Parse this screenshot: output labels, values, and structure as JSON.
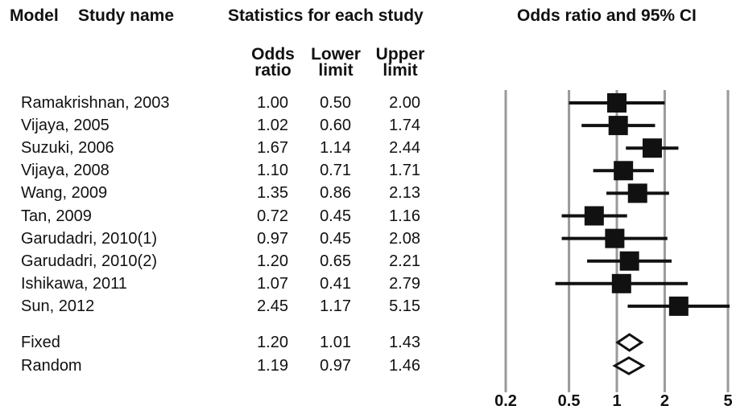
{
  "headers": {
    "model": "Model",
    "study_name": "Study name",
    "stats": "Statistics for each study",
    "ci": "Odds ratio and 95% CI",
    "col_or_1": "Odds",
    "col_or_2": "ratio",
    "col_lo_1": "Lower",
    "col_lo_2": "limit",
    "col_hi_1": "Upper",
    "col_hi_2": "limit"
  },
  "chart_data": {
    "type": "forest",
    "x_scale": "log",
    "xlim": [
      0.2,
      5
    ],
    "x_ticks": [
      0.2,
      0.5,
      1,
      2,
      5
    ],
    "x_tick_labels": [
      "0.2",
      "0.5",
      "1",
      "2",
      "5"
    ],
    "grid": true,
    "studies": [
      {
        "name": "Ramakrishnan, 2003",
        "or": "1.00",
        "lower": "0.50",
        "upper": "2.00"
      },
      {
        "name": "Vijaya, 2005",
        "or": "1.02",
        "lower": "0.60",
        "upper": "1.74"
      },
      {
        "name": "Suzuki, 2006",
        "or": "1.67",
        "lower": "1.14",
        "upper": "2.44"
      },
      {
        "name": "Vijaya, 2008",
        "or": "1.10",
        "lower": "0.71",
        "upper": "1.71"
      },
      {
        "name": "Wang, 2009",
        "or": "1.35",
        "lower": "0.86",
        "upper": "2.13"
      },
      {
        "name": "Tan, 2009",
        "or": "0.72",
        "lower": "0.45",
        "upper": "1.16"
      },
      {
        "name": "Garudadri, 2010(1)",
        "or": "0.97",
        "lower": "0.45",
        "upper": "2.08"
      },
      {
        "name": "Garudadri, 2010(2)",
        "or": "1.20",
        "lower": "0.65",
        "upper": "2.21"
      },
      {
        "name": "Ishikawa, 2011",
        "or": "1.07",
        "lower": "0.41",
        "upper": "2.79"
      },
      {
        "name": "Sun, 2012",
        "or": "2.45",
        "lower": "1.17",
        "upper": "5.15"
      }
    ],
    "summary": [
      {
        "name": "Fixed",
        "or": "1.20",
        "lower": "1.01",
        "upper": "1.43"
      },
      {
        "name": "Random",
        "or": "1.19",
        "lower": "0.97",
        "upper": "1.46"
      }
    ]
  }
}
